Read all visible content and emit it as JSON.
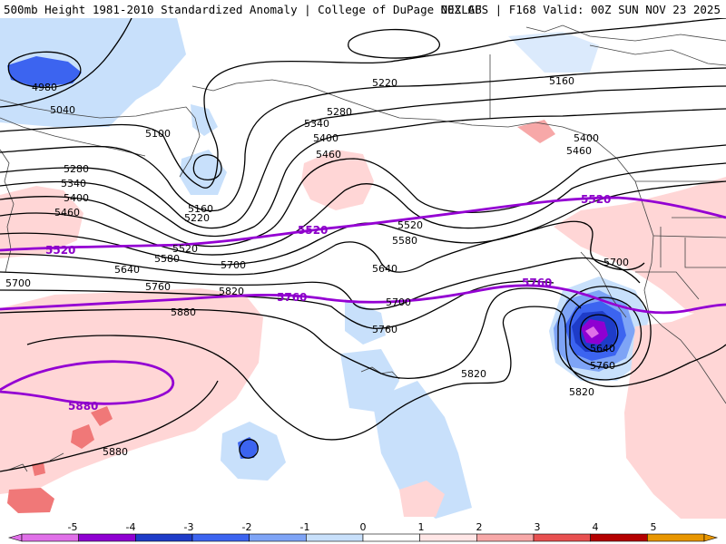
{
  "header": {
    "title_left": "500mb Height 1981-2010 Standardized Anomaly | College of DuPage NEXLAB",
    "title_right": "00Z GFS | F168 Valid: 00Z SUN NOV 23 2025"
  },
  "contour_labels": [
    "4980",
    "5040",
    "5100",
    "5160",
    "5220",
    "5220",
    "5280",
    "5280",
    "5340",
    "5340",
    "5400",
    "5400",
    "5460",
    "5460",
    "5520",
    "5520",
    "5580",
    "5580",
    "5640",
    "5640",
    "5700",
    "5700",
    "5700",
    "5700",
    "5760",
    "5760",
    "5820",
    "5820",
    "5820",
    "5880",
    "5880",
    "5160",
    "5400",
    "5460",
    "5640",
    "5760"
  ],
  "purple_labels": [
    "5520",
    "5520",
    "5520",
    "5760",
    "5760",
    "5880"
  ],
  "colorbar": {
    "ticks": [
      "-5",
      "-4",
      "-3",
      "-2",
      "-1",
      "0",
      "1",
      "2",
      "3",
      "4",
      "5"
    ],
    "colors": [
      "#e070e8",
      "#8f00d2",
      "#1e3cc8",
      "#3c64f0",
      "#7ea4f6",
      "#c8e0fb",
      "#ffffff",
      "#ffe6e6",
      "#f7a8a8",
      "#e85050",
      "#b40000",
      "#e89600"
    ]
  }
}
